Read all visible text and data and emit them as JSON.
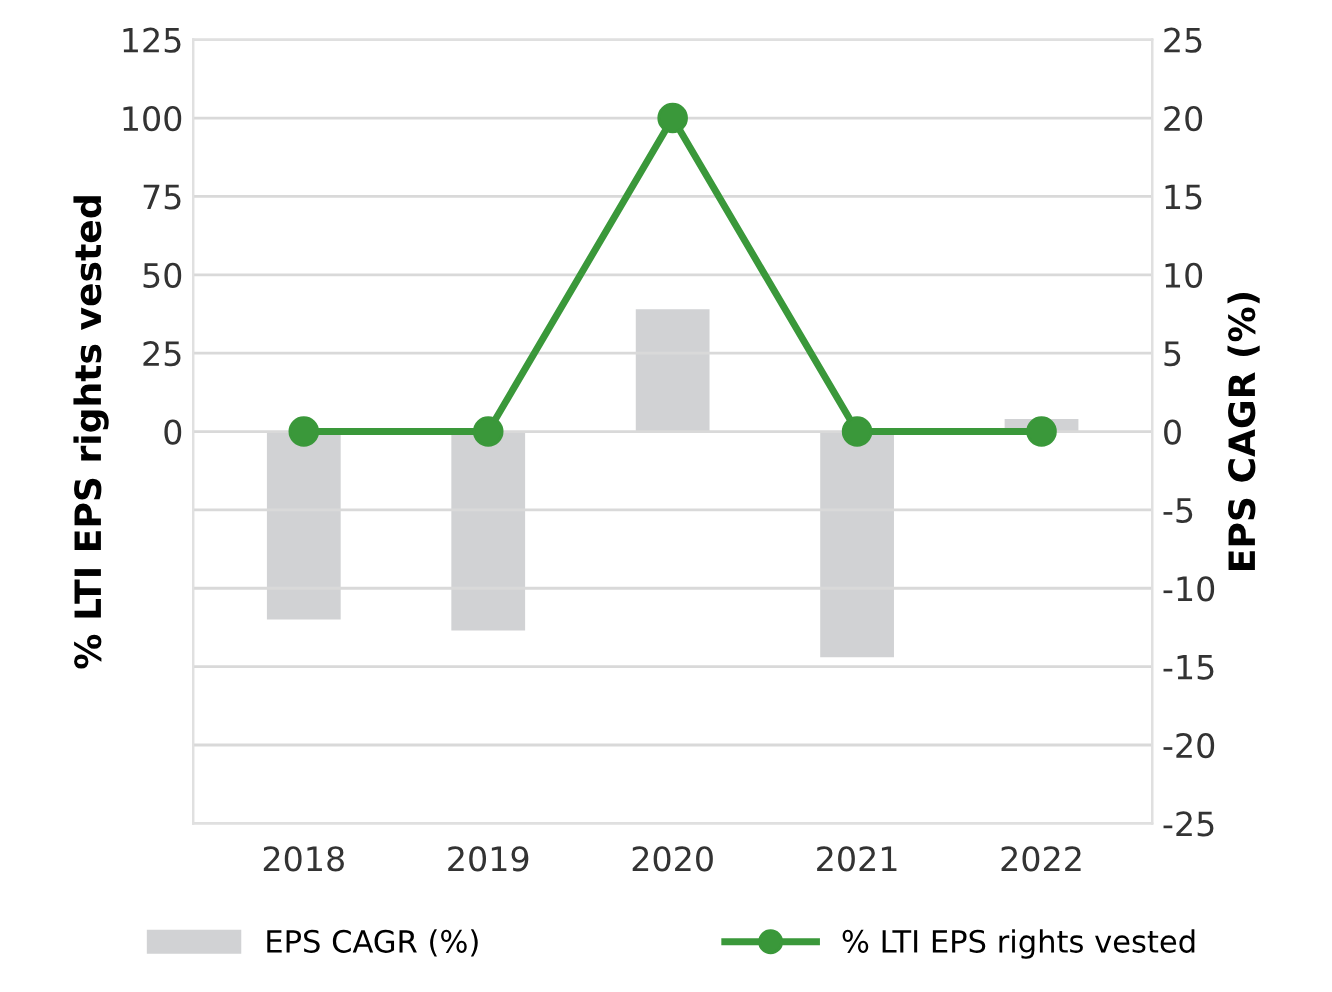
{
  "chart_data": {
    "type": "line",
    "categories": [
      "2018",
      "2019",
      "2020",
      "2021",
      "2022"
    ],
    "ylabel": "% LTI EPS rights vested",
    "y2label": "EPS CAGR (%)",
    "series": [
      {
        "name": "EPS CAGR (%)",
        "type": "bar",
        "axis": "y2",
        "color": "#d1d2d4",
        "values": [
          -12.0,
          -12.7,
          7.8,
          -14.4,
          0.8
        ]
      },
      {
        "name": "% LTI EPS rights vested",
        "color": "#3a983a",
        "values": [
          0,
          0,
          100,
          0,
          0
        ]
      }
    ],
    "ylim": [
      -125,
      125
    ],
    "yticks": [
      {
        "value": -125,
        "label": null
      },
      {
        "value": -100,
        "label": null
      },
      {
        "value": -75,
        "label": null
      },
      {
        "value": -50,
        "label": null
      },
      {
        "value": -25,
        "label": null
      },
      0,
      25,
      50,
      75,
      100,
      125
    ],
    "y2lim": [
      -25,
      25
    ],
    "y2ticks": [
      -25,
      -20,
      -15,
      -10,
      -5,
      0,
      5,
      10,
      15,
      20,
      25
    ],
    "grid": "y",
    "marker": "circle",
    "line_style": "solid",
    "legend": "bottom"
  }
}
